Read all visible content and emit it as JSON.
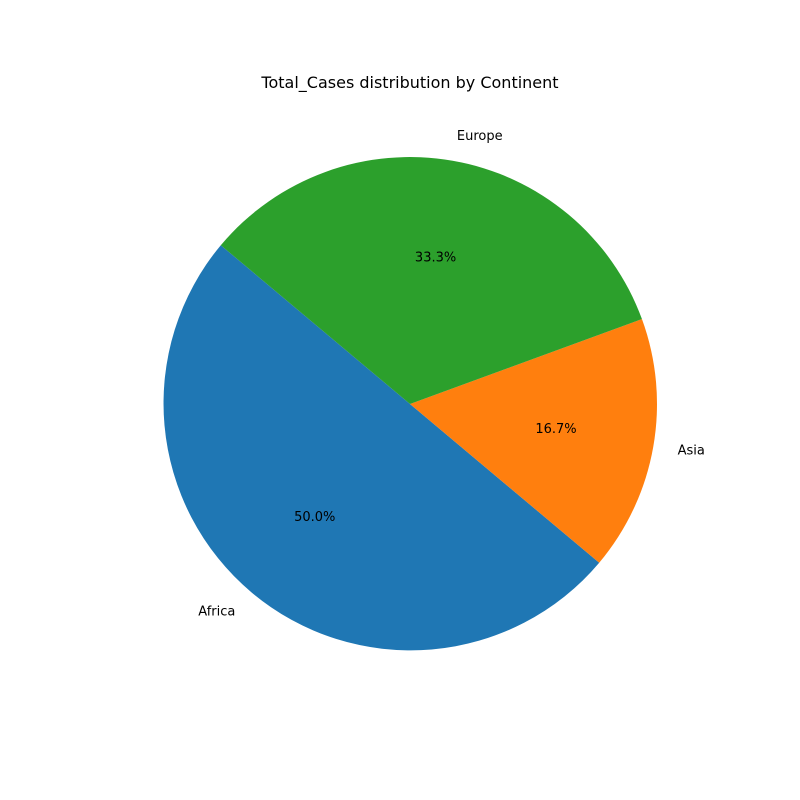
{
  "chart_data": {
    "type": "pie",
    "title": "Total_Cases distribution by Continent",
    "start_angle_deg": 140,
    "direction": "counterclockwise",
    "slices": [
      {
        "label": "Africa",
        "value": 50.0,
        "percent_label": "50.0%",
        "color": "#1f77b4"
      },
      {
        "label": "Asia",
        "value": 16.7,
        "percent_label": "16.7%",
        "color": "#ff7f0e"
      },
      {
        "label": "Europe",
        "value": 33.3,
        "percent_label": "33.3%",
        "color": "#2ca02c"
      }
    ]
  }
}
